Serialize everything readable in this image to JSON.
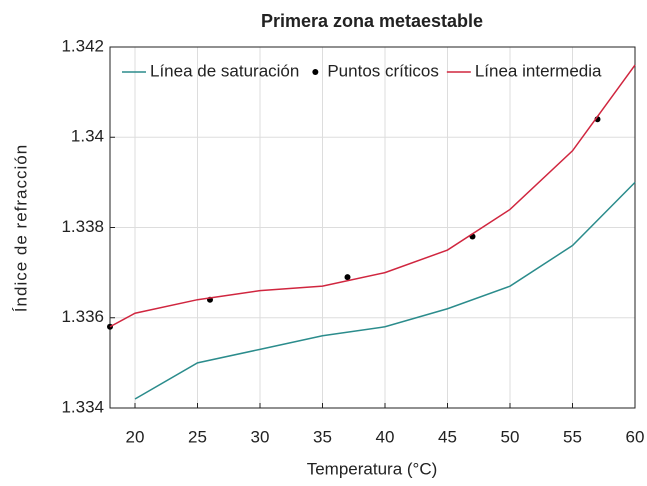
{
  "chart_data": {
    "type": "line",
    "title": "Primera zona metaestable",
    "x_label": "Temperatura (°C)",
    "y_label": "Índice de refracción",
    "xlim": [
      18,
      60
    ],
    "xticks": [
      20,
      25,
      30,
      35,
      40,
      45,
      50,
      55,
      60
    ],
    "ylim": [
      1.334,
      1.342
    ],
    "yticks": [
      1.334,
      1.336,
      1.338,
      1.34,
      1.342
    ],
    "grid": true,
    "legend": "top",
    "series": [
      {
        "name": "Línea de saturación",
        "color": "#2b8c8c",
        "kind": "line",
        "x": [
          20,
          25,
          30,
          35,
          40,
          45,
          50,
          55,
          60
        ],
        "values": [
          1.3342,
          1.335,
          1.3353,
          1.3356,
          1.3358,
          1.3362,
          1.3367,
          1.3376,
          1.339
        ]
      },
      {
        "name": "Puntos críticos",
        "color": "#000000",
        "kind": "scatter",
        "x": [
          18,
          26,
          37,
          47,
          57
        ],
        "values": [
          1.3358,
          1.3364,
          1.3369,
          1.3378,
          1.3404
        ]
      },
      {
        "name": "Línea intermedia",
        "color": "#d0263f",
        "kind": "line",
        "x": [
          18,
          20,
          25,
          30,
          35,
          40,
          45,
          50,
          55,
          60
        ],
        "values": [
          1.3358,
          1.3361,
          1.3364,
          1.3366,
          1.3367,
          1.337,
          1.3375,
          1.3384,
          1.3397,
          1.3416
        ]
      }
    ]
  }
}
